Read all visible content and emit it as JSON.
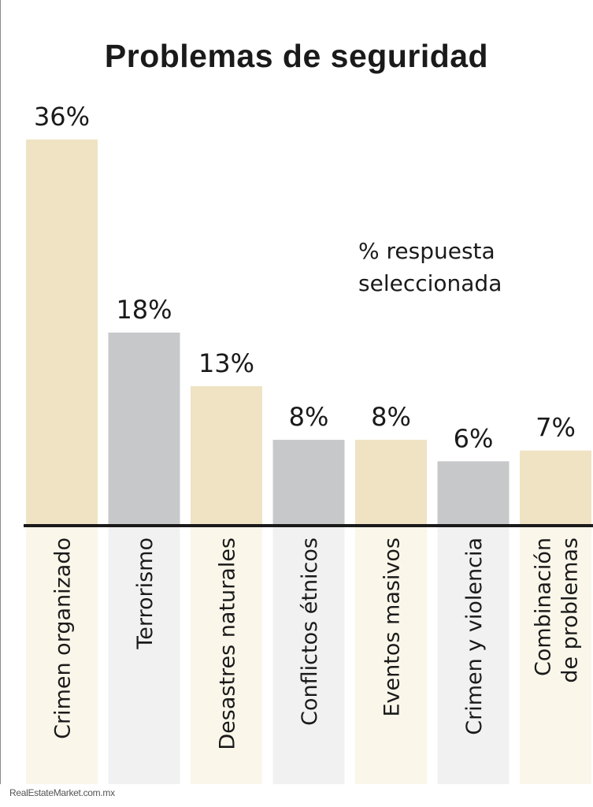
{
  "chart_data": {
    "type": "bar",
    "title": "Problemas de seguridad",
    "note_lines": [
      "% respuesta",
      "seleccionada"
    ],
    "categories": [
      [
        "Crimen organizado"
      ],
      [
        "Terrorismo"
      ],
      [
        "Desastres naturales"
      ],
      [
        "Conflictos étnicos"
      ],
      [
        "Eventos masivos"
      ],
      [
        "Crimen y violencia"
      ],
      [
        "Combinación",
        "de problemas"
      ]
    ],
    "values": [
      36,
      18,
      13,
      8,
      8,
      6,
      7
    ],
    "value_labels": [
      "36%",
      "18%",
      "13%",
      "8%",
      "8%",
      "6%",
      "7%"
    ],
    "colors": [
      "#efe3c3",
      "#c7c8ca",
      "#efe3c3",
      "#c7c8ca",
      "#efe3c3",
      "#c7c8ca",
      "#efe3c3"
    ],
    "label_band_colors": [
      "#faf6ea",
      "#f1f1f2",
      "#faf6ea",
      "#f1f1f2",
      "#faf6ea",
      "#f1f1f2",
      "#faf6ea"
    ],
    "baseline_color": "#1a1a1a",
    "ylim": [
      0,
      36
    ]
  },
  "credit": "RealEstateMarket.com.mx"
}
